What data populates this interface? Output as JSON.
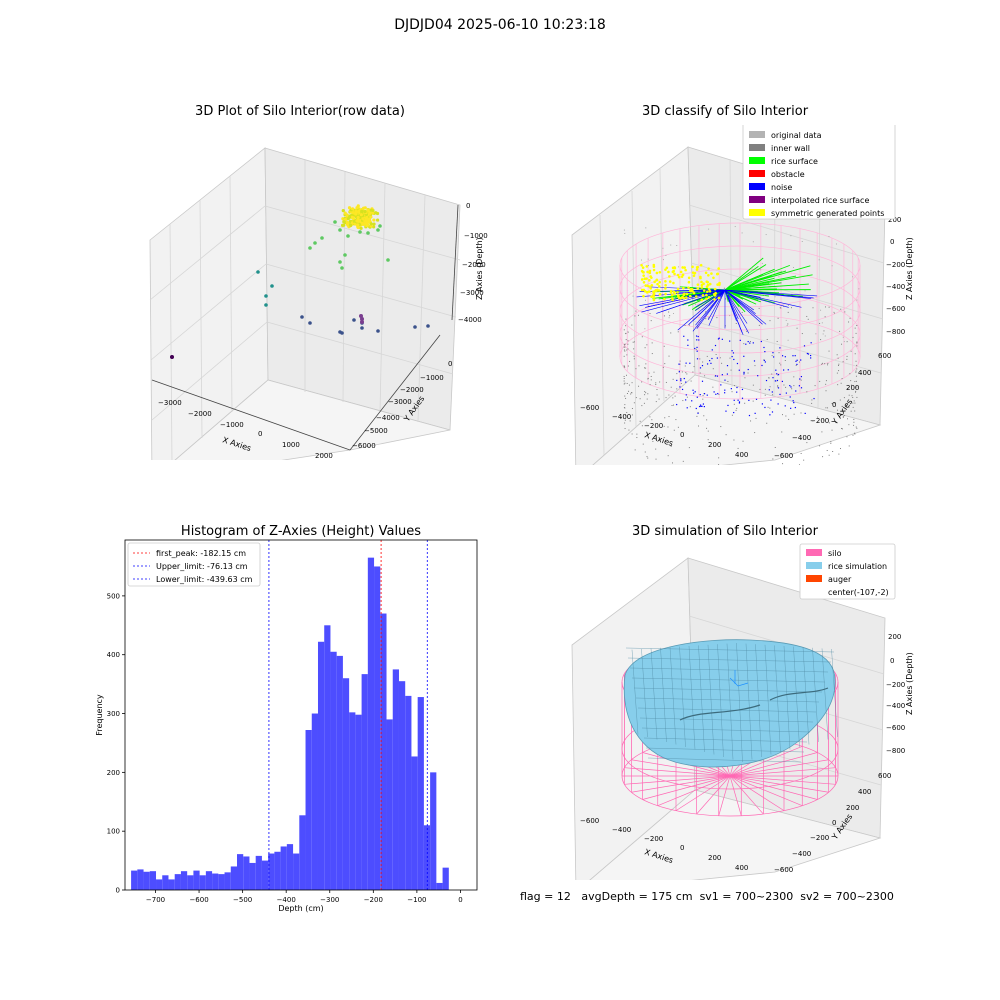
{
  "figure": {
    "suptitle": "DJDJD04 2025-06-10 10:23:18",
    "status": {
      "flag": "flag = 12",
      "avg_depth": "avgDepth = 175 cm",
      "sv1": "sv1 = 700~2300",
      "sv2": "sv2 = 700~2300"
    }
  },
  "chart_data": [
    {
      "type": "scatter3d",
      "title": "3D Plot of Silo Interior(row data)",
      "xlabel": "X Axies",
      "ylabel": "Y Axies",
      "zlabel": "Z Axies (Depth)",
      "x_ticks": [
        "−3000",
        "−2000",
        "−1000",
        "0",
        "1000",
        "2000"
      ],
      "y_ticks": [
        "0",
        "−1000",
        "−2000",
        "−3000",
        "−4000",
        "−5000",
        "−6000"
      ],
      "z_ticks": [
        "0",
        "−1000",
        "−2000",
        "−3000",
        "−4000"
      ],
      "colormap": "viridis",
      "colors": [
        "#fde725",
        "#5ec962",
        "#21918c",
        "#3b528b",
        "#440154"
      ]
    },
    {
      "type": "scatter3d",
      "title": "3D classify of Silo Interior",
      "xlabel": "X Axies",
      "ylabel": "Y Axies",
      "zlabel": "Z Axies (Depth)",
      "x_ticks": [
        "−600",
        "−400",
        "−200",
        "0",
        "200",
        "400"
      ],
      "y_ticks": [
        "600",
        "400",
        "200",
        "0",
        "−200",
        "−400",
        "−600"
      ],
      "z_ticks": [
        "200",
        "0",
        "−200",
        "−400",
        "−600",
        "−800"
      ],
      "legend": [
        {
          "label": "original data",
          "color": "#b3b3b3"
        },
        {
          "label": "inner wall",
          "color": "#808080"
        },
        {
          "label": "rice surface",
          "color": "#00ff00"
        },
        {
          "label": "obstacle",
          "color": "#ff0000"
        },
        {
          "label": "noise",
          "color": "#0000ff"
        },
        {
          "label": "interpolated rice surface",
          "color": "#800080"
        },
        {
          "label": "symmetric generated points",
          "color": "#ffff00"
        }
      ],
      "legend_loc": "upper right"
    },
    {
      "type": "bar",
      "title": "Histogram of Z-Axies (Height) Values",
      "xlabel": "Depth (cm)",
      "ylabel": "Frequency",
      "xlim": [
        -770,
        38
      ],
      "ylim": [
        0,
        595
      ],
      "x_ticks": [
        -700,
        -600,
        -500,
        -400,
        -300,
        -200,
        -100,
        0
      ],
      "y_ticks": [
        0,
        100,
        200,
        300,
        400,
        500
      ],
      "bin_width": 14.3,
      "bin_start": -756,
      "bar_color": "#4d4dff",
      "values": [
        33,
        35,
        31,
        32,
        18,
        25,
        18,
        27,
        32,
        25,
        33,
        25,
        32,
        28,
        27,
        30,
        40,
        61,
        57,
        46,
        58,
        50,
        62,
        65,
        74,
        78,
        62,
        127,
        272,
        300,
        422,
        450,
        405,
        398,
        360,
        302,
        298,
        367,
        565,
        550,
        470,
        290,
        375,
        355,
        330,
        227,
        328,
        110,
        200,
        12,
        38
      ],
      "vlines": [
        {
          "label": "first_peak: -182.15 cm",
          "x": -182.15,
          "color": "#ff0000"
        },
        {
          "label": "Upper_limit: -76.13 cm",
          "x": -76.13,
          "color": "#0000ff"
        },
        {
          "label": "Lower_limit: -439.63 cm",
          "x": -439.63,
          "color": "#0000ff"
        }
      ],
      "legend_loc": "upper left"
    },
    {
      "type": "surface3d",
      "title": "3D simulation of Silo Interior",
      "xlabel": "X Axies",
      "ylabel": "Y Axies",
      "zlabel": "Z Axies (Depth)",
      "x_ticks": [
        "−600",
        "−400",
        "−200",
        "0",
        "200",
        "400"
      ],
      "y_ticks": [
        "600",
        "400",
        "200",
        "0",
        "−200",
        "−400",
        "−600"
      ],
      "z_ticks": [
        "200",
        "0",
        "−200",
        "−400",
        "−600",
        "−800"
      ],
      "legend": [
        {
          "label": "silo",
          "color": "#ff69b4"
        },
        {
          "label": "rice simulation",
          "color": "#87ceeb"
        },
        {
          "label": "auger",
          "color": "#ff4500"
        },
        {
          "label": "center(-107,-2)",
          "color": ""
        }
      ],
      "legend_loc": "upper right"
    }
  ]
}
